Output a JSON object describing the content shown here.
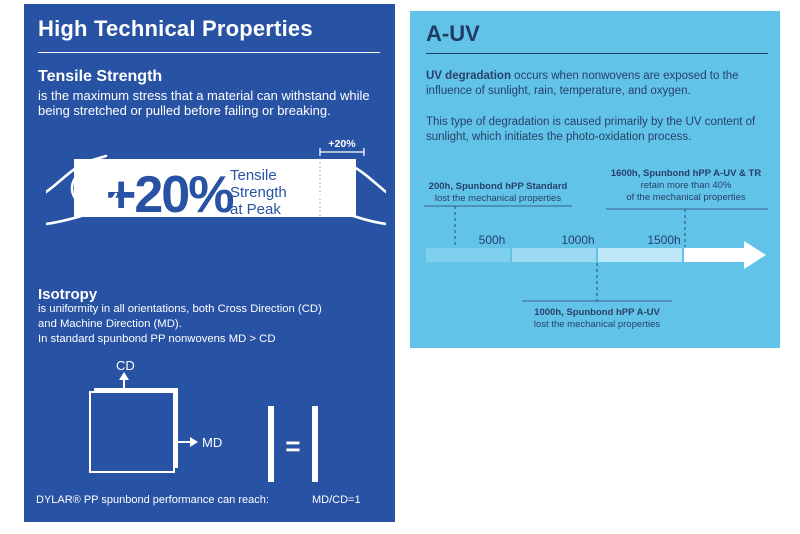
{
  "left": {
    "title": "High Technical Properties",
    "tensile": {
      "heading": "Tensile Strength",
      "description": "is the maximum stress that a material can withstand while being stretched or pulled before failing or breaking.",
      "big_value": "+20%",
      "small_value": "+20%",
      "label_line1": "Tensile",
      "label_line2": "Strength",
      "label_line3": "at Peak"
    },
    "isotropy": {
      "heading": "Isotropy",
      "line1": "is uniformity in all orientations, both Cross Direction (CD)",
      "line2": "and Machine Direction (MD).",
      "line3": "In standard spunbond PP nonwovens MD > CD",
      "cd_label": "CD",
      "md_label": "MD",
      "equals": "="
    },
    "performance_label": "DYLAR® PP spunbond performance can reach:",
    "performance_value": "MD/CD=1"
  },
  "right": {
    "title": "A-UV",
    "para1_bold": "UV degradation",
    "para1_rest": " occurs when nonwovens are exposed to the influence of sunlight, rain, temperature, and oxygen.",
    "para2": "This type of degradation is caused primarily by the UV content of sunlight, which initiates the photo-oxidation process.",
    "timeline": {
      "ticks": [
        "500h",
        "1000h",
        "1500h"
      ],
      "events": [
        {
          "bold": "200h, Spunbond hPP Standard",
          "lines": [
            "lost the mechanical properties"
          ]
        },
        {
          "bold": "1000h, Spunbond hPP A-UV",
          "lines": [
            "lost the mechanical properties"
          ]
        },
        {
          "bold": "1600h, Spunbond hPP A-UV & TR",
          "lines": [
            "retain more than 40%",
            "of the mechanical properties"
          ]
        }
      ]
    }
  },
  "colors": {
    "left_bg": "#2852a4",
    "right_bg": "#62c3e8",
    "dark_text": "#27406b"
  }
}
